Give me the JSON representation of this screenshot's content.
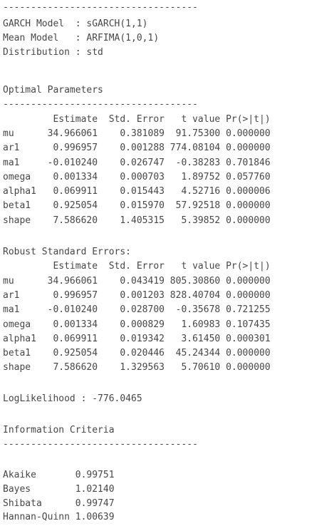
{
  "document": {
    "lines": [
      "-----------------------------------",
      "GARCH Model  : sGARCH(1,1)",
      "Mean Model   : ARFIMA(1,0,1)",
      "Distribution : std",
      "Optimal Parameters",
      "-----------------------------------",
      "         Estimate  Std. Error   t value Pr(>|t|)",
      "mu      34.966061    0.381089  91.75300 0.000000",
      "ar1      0.996957    0.001288 774.08104 0.000000",
      "ma1     -0.010240    0.026747  -0.38283 0.701846",
      "omega    0.001334    0.000703   1.89752 0.057760",
      "alpha1   0.069911    0.015443   4.52716 0.000006",
      "beta1    0.925054    0.015970  57.92518 0.000000",
      "shape    7.586620    1.405315   5.39852 0.000000",
      "Robust Standard Errors:",
      "         Estimate  Std. Error   t value Pr(>|t|)",
      "mu      34.966061    0.043419 805.30860 0.000000",
      "ar1      0.996957    0.001203 828.40704 0.000000",
      "ma1     -0.010240    0.028700  -0.35678 0.721255",
      "omega    0.001334    0.000829   1.60983 0.107435",
      "alpha1   0.069911    0.019342   3.61450 0.000301",
      "beta1    0.925054    0.020446  45.24344 0.000000",
      "shape    7.586620    1.329563   5.70610 0.000000",
      "LogLikelihood : -776.0465",
      "Information Criteria",
      "-----------------------------------",
      "Akaike       0.99751",
      "Bayes        1.02140",
      "Shibata      0.99747",
      "Hannan-Quinn 1.00639"
    ]
  }
}
